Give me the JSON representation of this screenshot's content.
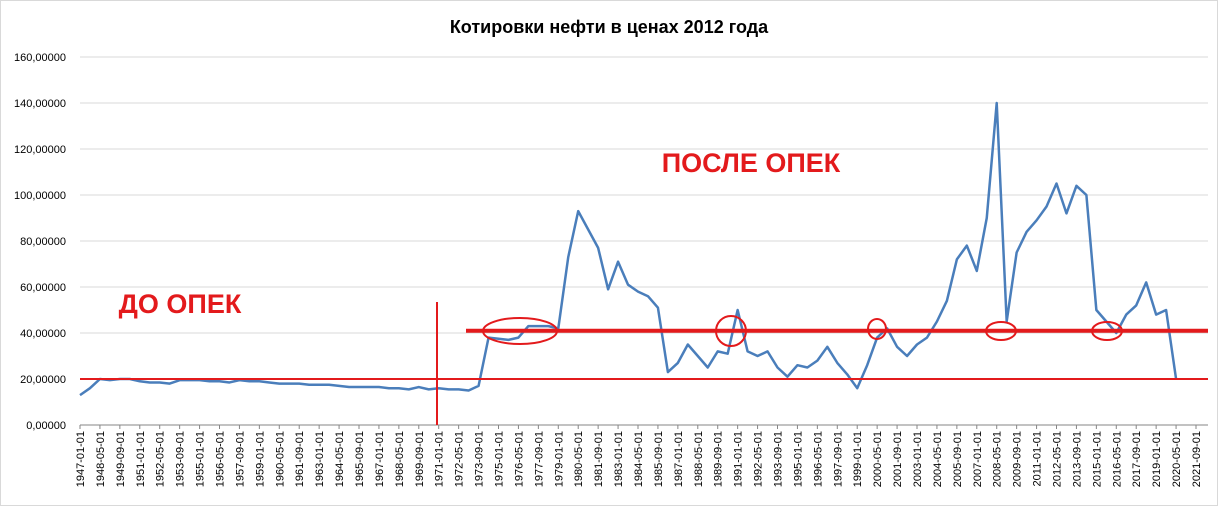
{
  "chart_data": {
    "type": "line",
    "title": "Котировки нефти в ценах 2012 года",
    "categories": [
      "1947-01-01",
      null,
      "1948-05-01",
      null,
      "1949-09-01",
      null,
      "1951-01-01",
      null,
      "1952-05-01",
      null,
      "1953-09-01",
      null,
      "1955-01-01",
      null,
      "1956-05-01",
      null,
      "1957-09-01",
      null,
      "1959-01-01",
      null,
      "1960-05-01",
      null,
      "1961-09-01",
      null,
      "1963-01-01",
      null,
      "1964-05-01",
      null,
      "1965-09-01",
      null,
      "1967-01-01",
      null,
      "1968-05-01",
      null,
      "1969-09-01",
      null,
      "1971-01-01",
      null,
      "1972-05-01",
      null,
      "1973-09-01",
      null,
      "1975-01-01",
      null,
      "1976-05-01",
      null,
      "1977-09-01",
      null,
      "1979-01-01",
      null,
      "1980-05-01",
      null,
      "1981-09-01",
      null,
      "1983-01-01",
      null,
      "1984-05-01",
      null,
      "1985-09-01",
      null,
      "1987-01-01",
      null,
      "1988-05-01",
      null,
      "1989-09-01",
      null,
      "1991-01-01",
      null,
      "1992-05-01",
      null,
      "1993-09-01",
      null,
      "1995-01-01",
      null,
      "1996-05-01",
      null,
      "1997-09-01",
      null,
      "1999-01-01",
      null,
      "2000-05-01",
      null,
      "2001-09-01",
      null,
      "2003-01-01",
      null,
      "2004-05-01",
      null,
      "2005-09-01",
      null,
      "2007-01-01",
      null,
      "2008-05-01",
      null,
      "2009-09-01",
      null,
      "2011-01-01",
      null,
      "2012-05-01",
      null,
      "2013-09-01",
      null,
      "2015-01-01",
      null,
      "2016-05-01",
      null,
      "2017-09-01",
      null,
      "2019-01-01",
      null,
      "2020-05-01",
      null,
      "2021-09-01"
    ],
    "series": [
      {
        "color": "#4a7ebb",
        "values": [
          13,
          16,
          20,
          19.5,
          20,
          20,
          19,
          18.5,
          18.5,
          18,
          19.5,
          19.5,
          19.5,
          19,
          19,
          18.5,
          19.5,
          19,
          19,
          18.5,
          18,
          18,
          18,
          17.5,
          17.5,
          17.5,
          17,
          16.5,
          16.5,
          16.5,
          16.5,
          16,
          16,
          15.5,
          16.5,
          15.5,
          16,
          15.5,
          15.5,
          15,
          17,
          38,
          37.5,
          37,
          38,
          43,
          43,
          43,
          42,
          73,
          93,
          85,
          77,
          59,
          71,
          61,
          58,
          56,
          51,
          23,
          27,
          35,
          30,
          25,
          32,
          31,
          50,
          32,
          30,
          32,
          25,
          21,
          26,
          25,
          28,
          34,
          27,
          22,
          16,
          26,
          38,
          42,
          34,
          30,
          35,
          38,
          45,
          54,
          72,
          78,
          67,
          90,
          140,
          45,
          75,
          84,
          89,
          95,
          105,
          92,
          104,
          100,
          50,
          45,
          40,
          48,
          52,
          62,
          48,
          50,
          20,
          null,
          null
        ]
      }
    ],
    "ylim": [
      0,
      160
    ],
    "yticks": [
      {
        "value": 0,
        "label": "0,00000"
      },
      {
        "value": 20,
        "label": "20,00000"
      },
      {
        "value": 40,
        "label": "40,00000"
      },
      {
        "value": 60,
        "label": "60,00000"
      },
      {
        "value": 80,
        "label": "80,00000"
      },
      {
        "value": 100,
        "label": "100,00000"
      },
      {
        "value": 120,
        "label": "120,00000"
      },
      {
        "value": 140,
        "label": "140,00000"
      },
      {
        "value": 160,
        "label": "160,00000"
      }
    ],
    "grid": true,
    "reference_lines": [
      20,
      41
    ],
    "annotations": [
      "ДО ОПЕК",
      "ПОСЛЕ ОПЕК"
    ]
  }
}
